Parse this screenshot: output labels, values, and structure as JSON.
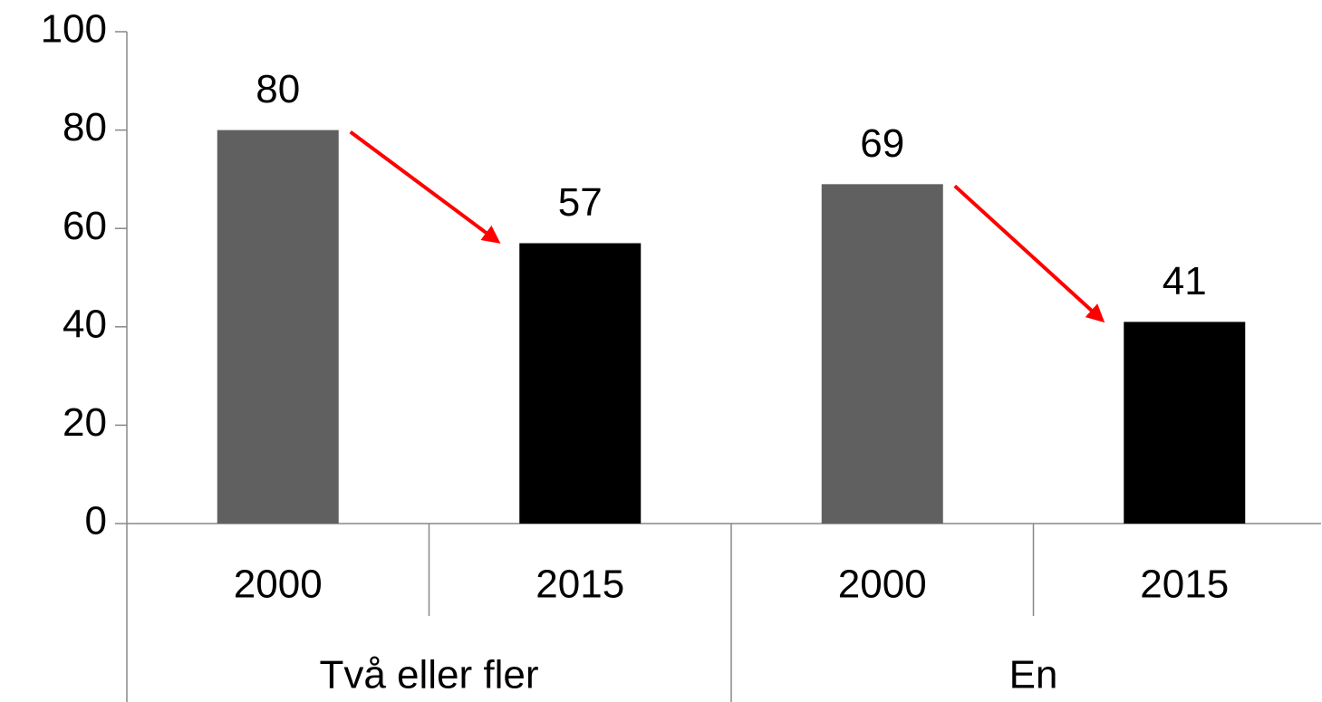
{
  "chart_data": {
    "type": "bar",
    "categories": [
      "2000",
      "2015",
      "2000",
      "2015"
    ],
    "groups": [
      "Två eller fler",
      "En"
    ],
    "values": [
      80,
      57,
      69,
      41
    ],
    "colors": [
      "#606060",
      "#000000",
      "#606060",
      "#000000"
    ],
    "ylim": [
      0,
      100
    ],
    "yticks": [
      0,
      20,
      40,
      60,
      80,
      100
    ],
    "grid": false
  }
}
